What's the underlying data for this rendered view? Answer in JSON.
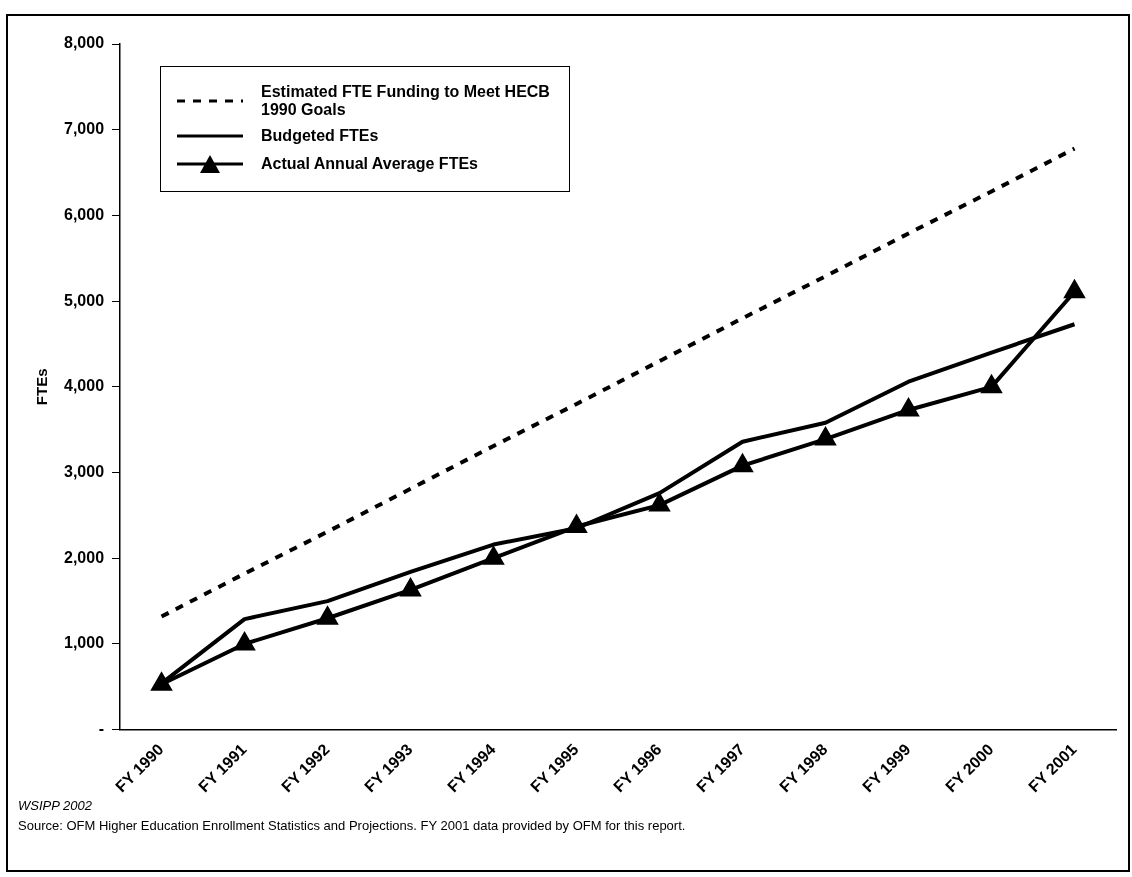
{
  "chart_data": {
    "type": "line",
    "ylabel": "FTEs",
    "categories": [
      "FY 1990",
      "FY 1991",
      "FY 1992",
      "FY 1993",
      "FY 1994",
      "FY 1995",
      "FY 1996",
      "FY 1997",
      "FY 1998",
      "FY 1999",
      "FY 2000",
      "FY 2001"
    ],
    "series": [
      {
        "name": "Estimated FTE Funding to Meet HECB 1990 Goals",
        "color": "#000000",
        "line_style": "dashed",
        "marker": "none",
        "values": [
          1320,
          1820,
          2310,
          2810,
          3310,
          3800,
          4300,
          4800,
          5290,
          5790,
          6280,
          6780
        ]
      },
      {
        "name": "Budgeted FTEs",
        "color": "#000000",
        "line_style": "solid",
        "marker": "none",
        "values": [
          540,
          1290,
          1500,
          1840,
          2160,
          2350,
          2760,
          3360,
          3580,
          4060,
          4400,
          4730
        ]
      },
      {
        "name": "Actual Annual Average FTEs",
        "color": "#000000",
        "line_style": "solid",
        "marker": "triangle",
        "values": [
          530,
          1000,
          1300,
          1630,
          2000,
          2370,
          2620,
          3080,
          3390,
          3730,
          4000,
          5110
        ]
      }
    ],
    "ylim": [
      0,
      8000
    ],
    "yticks": [
      {
        "value": 0,
        "label": "-"
      },
      {
        "value": 1000,
        "label": "1,000"
      },
      {
        "value": 2000,
        "label": "2,000"
      },
      {
        "value": 3000,
        "label": "3,000"
      },
      {
        "value": 4000,
        "label": "4,000"
      },
      {
        "value": 5000,
        "label": "5,000"
      },
      {
        "value": 6000,
        "label": "6,000"
      },
      {
        "value": 7000,
        "label": "7,000"
      },
      {
        "value": 8000,
        "label": "8,000"
      }
    ],
    "grid": false,
    "legend": "top left",
    "annotations": [
      "WSIPP 2002",
      "Source:  OFM Higher Education Enrollment Statistics and Projections.  FY 2001 data provided by OFM for this report."
    ]
  }
}
